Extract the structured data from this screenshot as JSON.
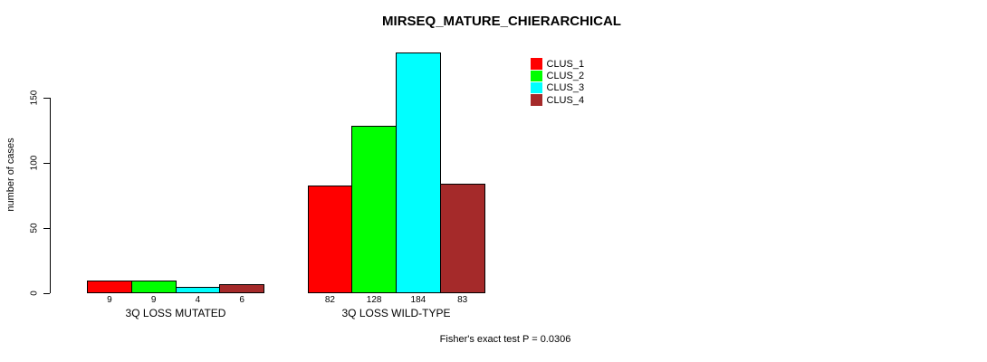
{
  "chart_data": {
    "type": "bar",
    "title": "MIRSEQ_MATURE_CHIERARCHICAL",
    "categories": [
      "3Q LOSS MUTATED",
      "3Q LOSS WILD-TYPE"
    ],
    "series": [
      {
        "name": "CLUS_1",
        "color": "#FF0000",
        "values": [
          9,
          82
        ]
      },
      {
        "name": "CLUS_2",
        "color": "#00FF00",
        "values": [
          9,
          128
        ]
      },
      {
        "name": "CLUS_3",
        "color": "#00FFFF",
        "values": [
          4,
          184
        ]
      },
      {
        "name": "CLUS_4",
        "color": "#A52A2A",
        "values": [
          6,
          83
        ]
      }
    ],
    "ylabel": "number of cases",
    "xlabel": "",
    "yticks": [
      0,
      50,
      100,
      150
    ],
    "ylim": [
      0,
      190
    ],
    "bar_labels": true,
    "grid": false,
    "legend_position": "top-right",
    "annotation": "Fisher's exact test P = 0.0306"
  }
}
